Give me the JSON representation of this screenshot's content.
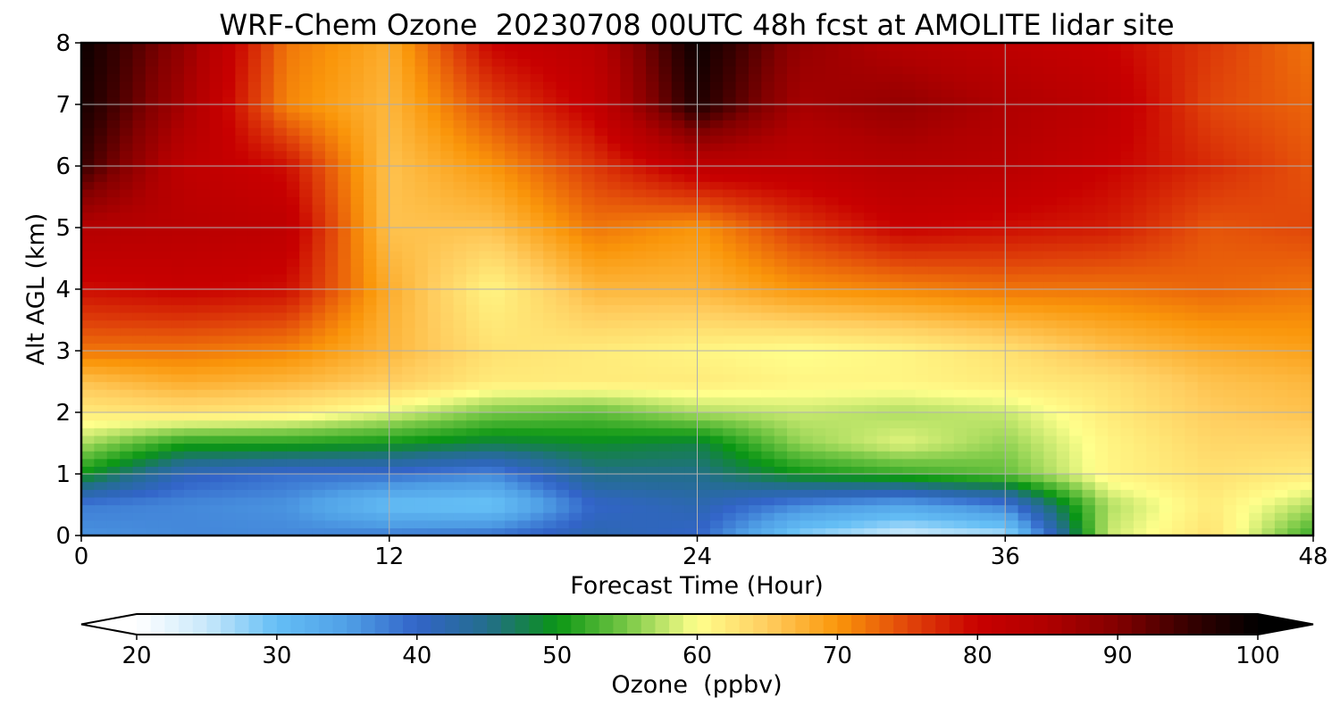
{
  "chart_data": {
    "type": "heatmap",
    "title": "WRF-Chem Ozone  20230708 00UTC 48h fcst at AMOLITE lidar site",
    "xlabel": "Forecast Time (Hour)",
    "ylabel": "Alt AGL (km)",
    "xlim": [
      0,
      48
    ],
    "ylim": [
      0,
      8
    ],
    "xticks": [
      "0",
      "12",
      "24",
      "36",
      "48"
    ],
    "yticks": [
      "0",
      "1",
      "2",
      "3",
      "4",
      "5",
      "6",
      "7",
      "8"
    ],
    "grid": true,
    "colorbar": {
      "label": "Ozone  (ppbv)",
      "range": [
        20,
        100
      ],
      "extend": "both",
      "ticks": [
        "20",
        "30",
        "40",
        "50",
        "60",
        "70",
        "80",
        "90",
        "100"
      ]
    },
    "x": [
      0,
      4,
      8,
      12,
      16,
      20,
      24,
      28,
      32,
      36,
      40,
      44,
      48
    ],
    "y": [
      0,
      0.5,
      1,
      1.5,
      2,
      2.5,
      3,
      4,
      5,
      6,
      7,
      8
    ],
    "z": [
      [
        36,
        37,
        37,
        38,
        39,
        42,
        40,
        28,
        24,
        26,
        58,
        63,
        52
      ],
      [
        38,
        37,
        36,
        30,
        29,
        40,
        42,
        37,
        34,
        38,
        57,
        62,
        57
      ],
      [
        50,
        41,
        39,
        39,
        37,
        45,
        45,
        50,
        52,
        54,
        61,
        63,
        62
      ],
      [
        57,
        51,
        51,
        50,
        48,
        49,
        48,
        56,
        59,
        56,
        61,
        64,
        64
      ],
      [
        62,
        63,
        62,
        59,
        55,
        54,
        57,
        58,
        57,
        58,
        62,
        65,
        66
      ],
      [
        66,
        68,
        67,
        65,
        62,
        62,
        62,
        61,
        61,
        62,
        63,
        66,
        67
      ],
      [
        72,
        72,
        71,
        67,
        63,
        62,
        61,
        60,
        61,
        63,
        66,
        68,
        69
      ],
      [
        79,
        80,
        79,
        68,
        61,
        67,
        67,
        70,
        71,
        72,
        72,
        73,
        72
      ],
      [
        84,
        83,
        82,
        66,
        66,
        72,
        70,
        76,
        80,
        79,
        78,
        74,
        75
      ],
      [
        95,
        82,
        79,
        66,
        70,
        76,
        82,
        82,
        84,
        83,
        80,
        77,
        74
      ],
      [
        98,
        86,
        71,
        67,
        75,
        81,
        97,
        86,
        88,
        85,
        82,
        75,
        73
      ],
      [
        99,
        88,
        72,
        68,
        80,
        83,
        99,
        88,
        84,
        82,
        80,
        76,
        72
      ]
    ]
  }
}
